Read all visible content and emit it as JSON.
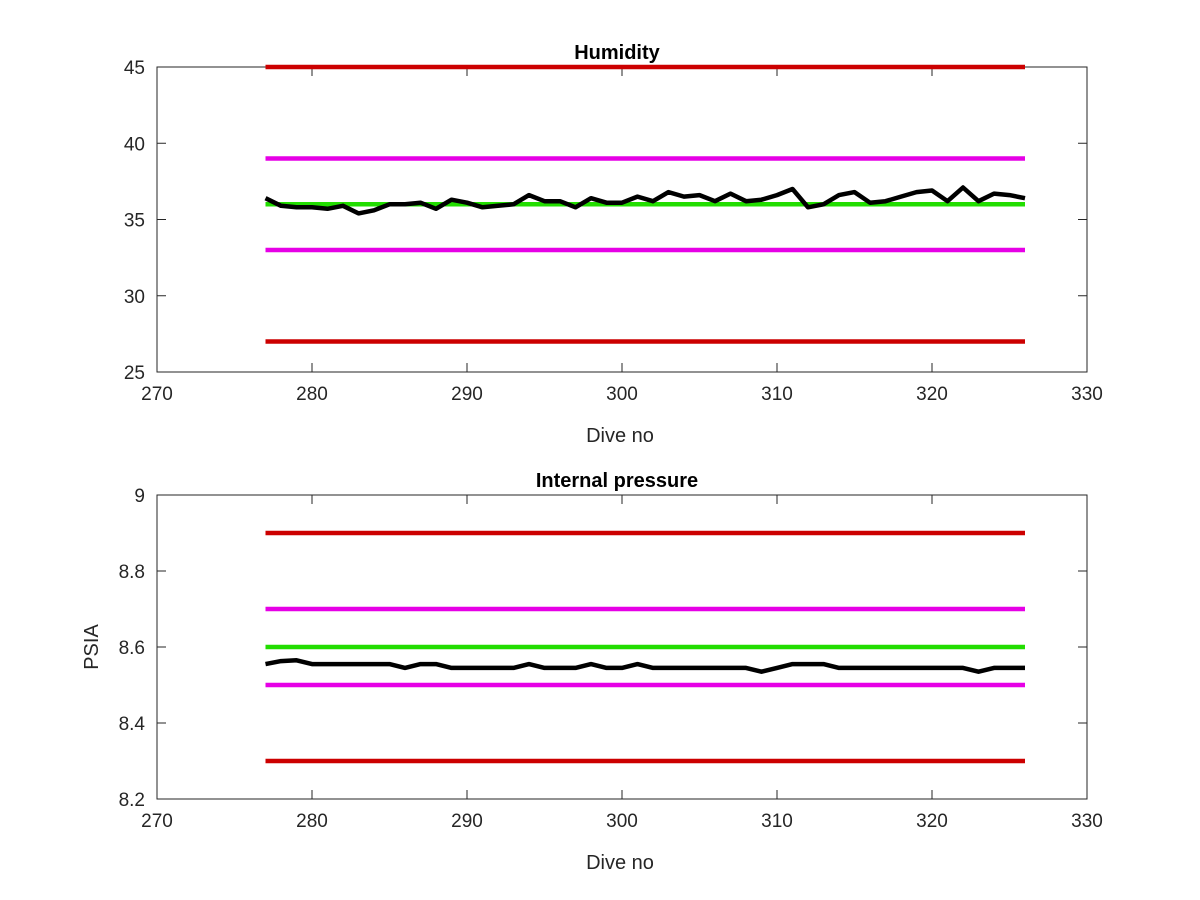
{
  "chart_data": [
    {
      "type": "line",
      "title": "Humidity",
      "xlabel": "Dive no",
      "ylabel": "",
      "xlim": [
        270,
        330
      ],
      "ylim": [
        25,
        45
      ],
      "xticks": [
        270,
        280,
        290,
        300,
        310,
        320,
        330
      ],
      "yticks": [
        25,
        30,
        35,
        40,
        45
      ],
      "xtick_labels": [
        "270",
        "280",
        "290",
        "300",
        "310",
        "320",
        "330"
      ],
      "ytick_labels": [
        "25",
        "30",
        "35",
        "40",
        "45"
      ],
      "grid": false,
      "series": [
        {
          "color": "#cc0000",
          "x": [
            277,
            326
          ],
          "y": [
            45,
            45
          ]
        },
        {
          "color": "#e600e6",
          "x": [
            277,
            326
          ],
          "y": [
            39,
            39
          ]
        },
        {
          "color": "#22dd00",
          "x": [
            277,
            326
          ],
          "y": [
            36,
            36
          ]
        },
        {
          "color": "#e600e6",
          "x": [
            277,
            326
          ],
          "y": [
            33,
            33
          ]
        },
        {
          "color": "#cc0000",
          "x": [
            277,
            326
          ],
          "y": [
            27,
            27
          ]
        },
        {
          "color": "#000000",
          "x": [
            277,
            278,
            279,
            280,
            281,
            282,
            283,
            284,
            285,
            286,
            287,
            288,
            289,
            290,
            291,
            292,
            293,
            294,
            295,
            296,
            297,
            298,
            299,
            300,
            301,
            302,
            303,
            304,
            305,
            306,
            307,
            308,
            309,
            310,
            311,
            312,
            313,
            314,
            315,
            316,
            317,
            318,
            319,
            320,
            321,
            322,
            323,
            324,
            325,
            326
          ],
          "y": [
            36.4,
            35.9,
            35.8,
            35.8,
            35.7,
            35.9,
            35.4,
            35.6,
            36.0,
            36.0,
            36.1,
            35.7,
            36.3,
            36.1,
            35.8,
            35.9,
            36.0,
            36.6,
            36.2,
            36.2,
            35.8,
            36.4,
            36.1,
            36.1,
            36.5,
            36.2,
            36.8,
            36.5,
            36.6,
            36.2,
            36.7,
            36.2,
            36.3,
            36.6,
            37.0,
            35.8,
            36.0,
            36.6,
            36.8,
            36.1,
            36.2,
            36.5,
            36.8,
            36.9,
            36.2,
            37.1,
            36.2,
            36.7,
            36.6,
            36.4
          ]
        }
      ]
    },
    {
      "type": "line",
      "title": "Internal pressure",
      "xlabel": "Dive no",
      "ylabel": "PSIA",
      "xlim": [
        270,
        330
      ],
      "ylim": [
        8.2,
        9
      ],
      "xticks": [
        270,
        280,
        290,
        300,
        310,
        320,
        330
      ],
      "yticks": [
        8.2,
        8.4,
        8.6,
        8.8,
        9
      ],
      "xtick_labels": [
        "270",
        "280",
        "290",
        "300",
        "310",
        "320",
        "330"
      ],
      "ytick_labels": [
        "8.2",
        "8.4",
        "8.6",
        "8.8",
        "9"
      ],
      "grid": false,
      "series": [
        {
          "color": "#cc0000",
          "x": [
            277,
            326
          ],
          "y": [
            8.9,
            8.9
          ]
        },
        {
          "color": "#e600e6",
          "x": [
            277,
            326
          ],
          "y": [
            8.7,
            8.7
          ]
        },
        {
          "color": "#22dd00",
          "x": [
            277,
            326
          ],
          "y": [
            8.6,
            8.6
          ]
        },
        {
          "color": "#e600e6",
          "x": [
            277,
            326
          ],
          "y": [
            8.5,
            8.5
          ]
        },
        {
          "color": "#cc0000",
          "x": [
            277,
            326
          ],
          "y": [
            8.3,
            8.3
          ]
        },
        {
          "color": "#000000",
          "x": [
            277,
            278,
            279,
            280,
            281,
            282,
            283,
            284,
            285,
            286,
            287,
            288,
            289,
            290,
            291,
            292,
            293,
            294,
            295,
            296,
            297,
            298,
            299,
            300,
            301,
            302,
            303,
            304,
            305,
            306,
            307,
            308,
            309,
            310,
            311,
            312,
            313,
            314,
            315,
            316,
            317,
            318,
            319,
            320,
            321,
            322,
            323,
            324,
            325,
            326
          ],
          "y": [
            8.555,
            8.563,
            8.565,
            8.555,
            8.555,
            8.555,
            8.555,
            8.555,
            8.555,
            8.545,
            8.555,
            8.555,
            8.545,
            8.545,
            8.545,
            8.545,
            8.545,
            8.555,
            8.545,
            8.545,
            8.545,
            8.555,
            8.545,
            8.545,
            8.555,
            8.545,
            8.545,
            8.545,
            8.545,
            8.545,
            8.545,
            8.545,
            8.535,
            8.545,
            8.555,
            8.555,
            8.555,
            8.545,
            8.545,
            8.545,
            8.545,
            8.545,
            8.545,
            8.545,
            8.545,
            8.545,
            8.535,
            8.545,
            8.545,
            8.545
          ]
        }
      ]
    }
  ]
}
